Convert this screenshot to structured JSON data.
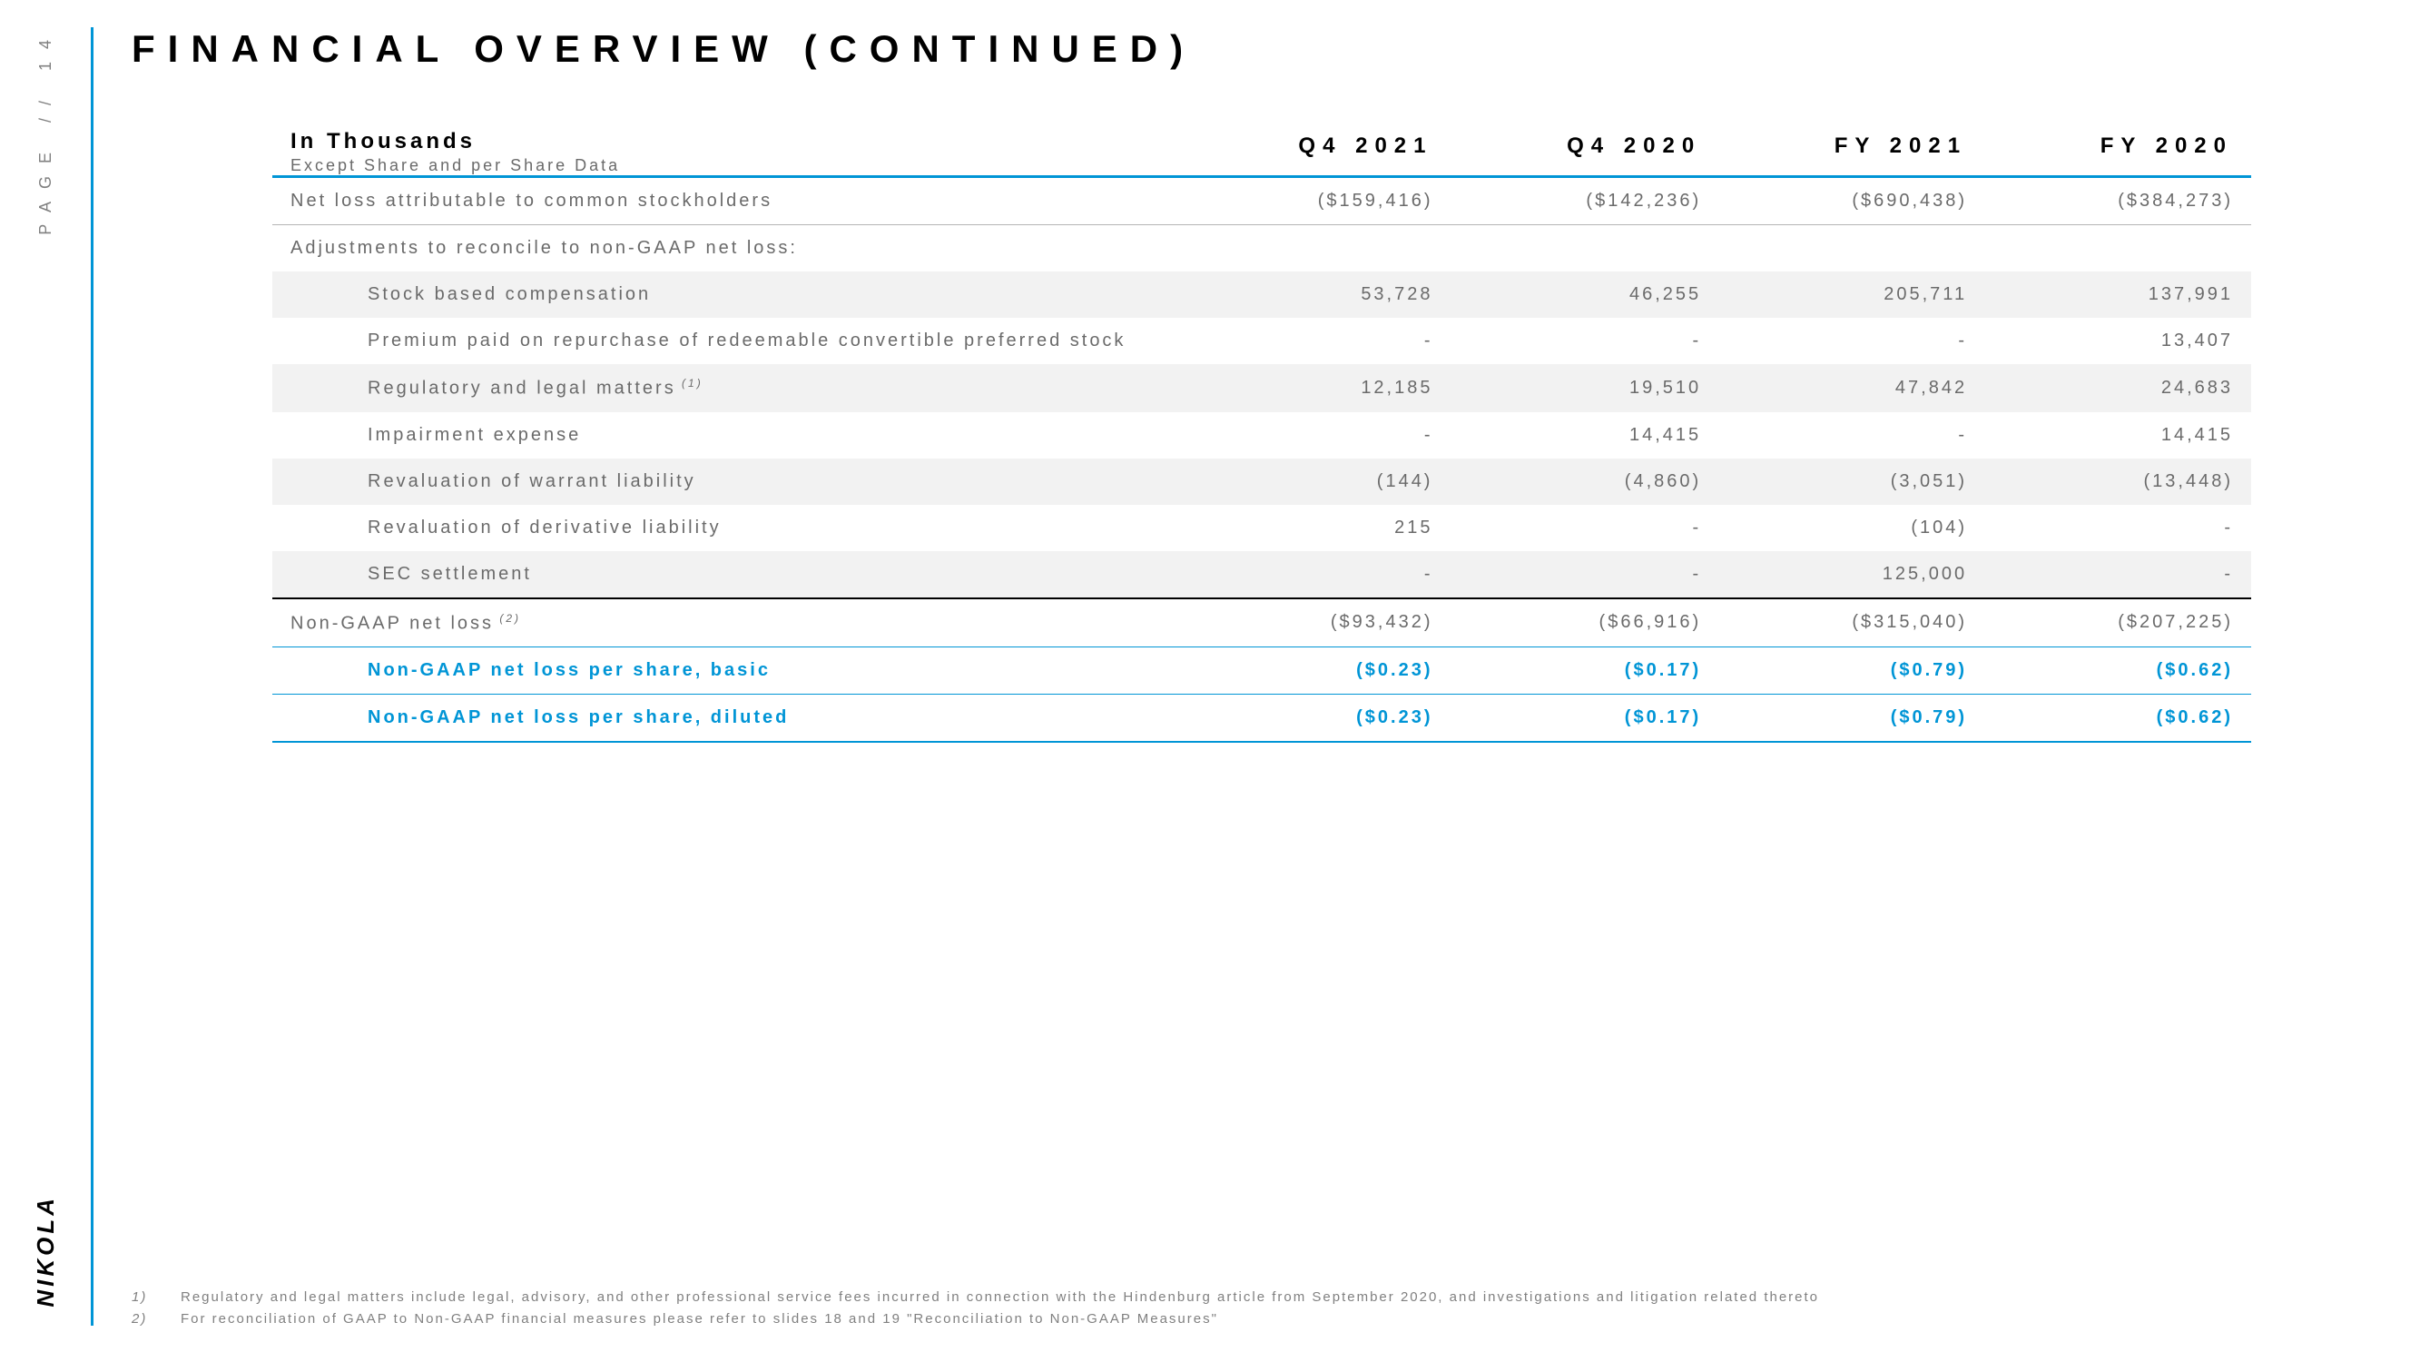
{
  "page_label": "PAGE // 14",
  "logo": "NIKOLA",
  "title": "FINANCIAL OVERVIEW (CONTINUED)",
  "accent_color": "#0095d6",
  "text_gray": "#6a6a6a",
  "bg_shade": "#f2f2f2",
  "header": {
    "line1": "In Thousands",
    "line2": "Except Share and per Share Data",
    "cols": [
      "Q4 2021",
      "Q4 2020",
      "FY 2021",
      "FY 2020"
    ]
  },
  "rows": [
    {
      "label": "Net loss attributable to common stockholders",
      "vals": [
        "($159,416)",
        "($142,236)",
        "($690,438)",
        "($384,273)"
      ],
      "indent": false,
      "shade": false,
      "top": "blue"
    },
    {
      "label": "Adjustments to reconcile to non-GAAP net loss:",
      "vals": [
        "",
        "",
        "",
        ""
      ],
      "indent": false,
      "shade": false,
      "top": "thin"
    },
    {
      "label": "Stock based compensation",
      "vals": [
        "53,728",
        "46,255",
        "205,711",
        "137,991"
      ],
      "indent": true,
      "shade": true,
      "top": ""
    },
    {
      "label": "Premium paid on repurchase of redeemable convertible preferred stock",
      "vals": [
        "-",
        "-",
        "-",
        "13,407"
      ],
      "indent": true,
      "shade": false,
      "top": ""
    },
    {
      "label": "Regulatory and legal matters",
      "sup": "(1)",
      "vals": [
        "12,185",
        "19,510",
        "47,842",
        "24,683"
      ],
      "indent": true,
      "shade": true,
      "top": ""
    },
    {
      "label": "Impairment expense",
      "vals": [
        "-",
        "14,415",
        "-",
        "14,415"
      ],
      "indent": true,
      "shade": false,
      "top": ""
    },
    {
      "label": "Revaluation of warrant liability",
      "vals": [
        "(144)",
        "(4,860)",
        "(3,051)",
        "(13,448)"
      ],
      "indent": true,
      "shade": true,
      "top": ""
    },
    {
      "label": "Revaluation of derivative liability",
      "vals": [
        "215",
        "-",
        "(104)",
        "-"
      ],
      "indent": true,
      "shade": false,
      "top": ""
    },
    {
      "label": "SEC settlement",
      "vals": [
        "-",
        "-",
        "125,000",
        "-"
      ],
      "indent": true,
      "shade": true,
      "top": ""
    },
    {
      "label": "Non-GAAP net loss",
      "sup": "(2)",
      "vals": [
        "($93,432)",
        "($66,916)",
        "($315,040)",
        "($207,225)"
      ],
      "indent": false,
      "shade": false,
      "top": "black"
    },
    {
      "label": "Non-GAAP net loss per share, basic",
      "vals": [
        "($0.23)",
        "($0.17)",
        "($0.79)",
        "($0.62)"
      ],
      "indent": true,
      "shade": false,
      "top": "bluethin",
      "blue": true
    },
    {
      "label": "Non-GAAP net loss per share, diluted",
      "vals": [
        "($0.23)",
        "($0.17)",
        "($0.79)",
        "($0.62)"
      ],
      "indent": true,
      "shade": false,
      "top": "bluethin",
      "blue": true,
      "bottom": "blue"
    }
  ],
  "footnotes": [
    {
      "num": "1)",
      "text": "Regulatory and legal matters include legal, advisory, and other professional service fees incurred in connection with the Hindenburg article from September 2020, and investigations and litigation related thereto"
    },
    {
      "num": "2)",
      "text": "For reconciliation of GAAP to Non-GAAP financial measures please refer to slides 18 and 19 \"Reconciliation to Non-GAAP Measures\""
    }
  ]
}
